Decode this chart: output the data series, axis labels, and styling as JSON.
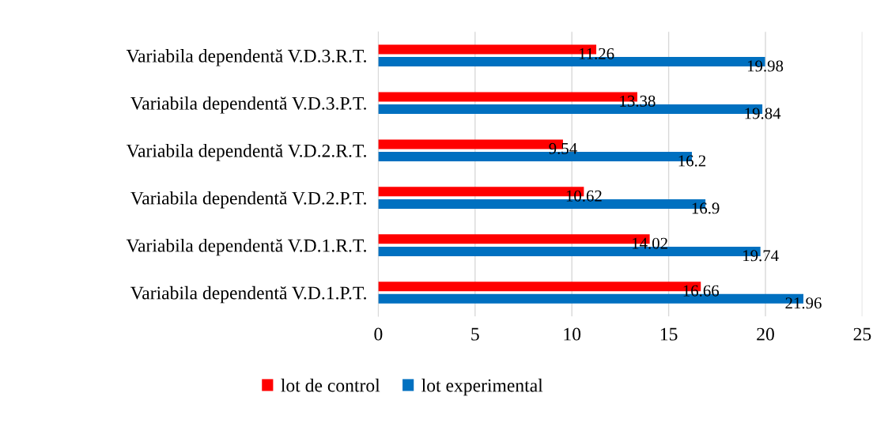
{
  "chart_data": {
    "type": "bar",
    "orientation": "horizontal",
    "categories": [
      "Variabila dependentă V.D.3.R.T.",
      "Variabila dependentă V.D.3.P.T.",
      "Variabila dependentă V.D.2.R.T.",
      "Variabila dependentă V.D.2.P.T.",
      "Variabila dependentă V.D.1.R.T.",
      "Variabila dependentă V.D.1.P.T."
    ],
    "series": [
      {
        "name": "lot de control",
        "color": "#ff0000",
        "values": [
          11.26,
          13.38,
          9.54,
          10.62,
          14.02,
          16.66
        ]
      },
      {
        "name": "lot experimental",
        "color": "#0070c0",
        "values": [
          19.98,
          19.84,
          16.2,
          16.9,
          19.74,
          21.96
        ]
      }
    ],
    "xlim": [
      0,
      25
    ],
    "xticks": [
      0,
      5,
      10,
      15,
      20,
      25
    ],
    "grid": "x",
    "legend": "bottom",
    "data_labels": true
  }
}
